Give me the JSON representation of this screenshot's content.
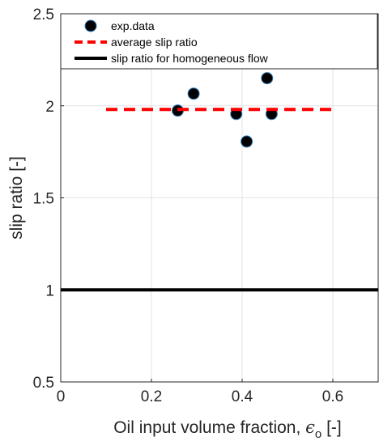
{
  "chart_data": {
    "type": "scatter",
    "xlabel": {
      "text": "Oil input volume fraction, ",
      "symbol": "ϵ",
      "subscript": "o",
      "suffix": " [-]"
    },
    "ylabel": "slip ratio [-]",
    "xlim": [
      0,
      0.7
    ],
    "ylim": [
      0.5,
      2.5
    ],
    "xticks": [
      0,
      0.2,
      0.4,
      0.6
    ],
    "yticks": [
      0.5,
      1,
      1.5,
      2,
      2.5
    ],
    "grid": true,
    "legend": "top",
    "series": [
      {
        "name": "exp.data",
        "kind": "scatter",
        "color": "#000000",
        "edgecolor": "#2f7fbf",
        "x": [
          0.258,
          0.293,
          0.387,
          0.41,
          0.455,
          0.465
        ],
        "values": [
          1.974,
          2.066,
          1.956,
          1.806,
          2.15,
          1.956
        ]
      },
      {
        "name": "average slip ratio",
        "kind": "line",
        "dashed": true,
        "color": "#ff0000",
        "x": [
          0.1,
          0.6
        ],
        "values": [
          1.98,
          1.98
        ]
      },
      {
        "name": "slip ratio for homogeneous flow",
        "kind": "line",
        "dashed": false,
        "color": "#000000",
        "x": [
          0,
          0.7
        ],
        "values": [
          1,
          1
        ]
      }
    ]
  }
}
